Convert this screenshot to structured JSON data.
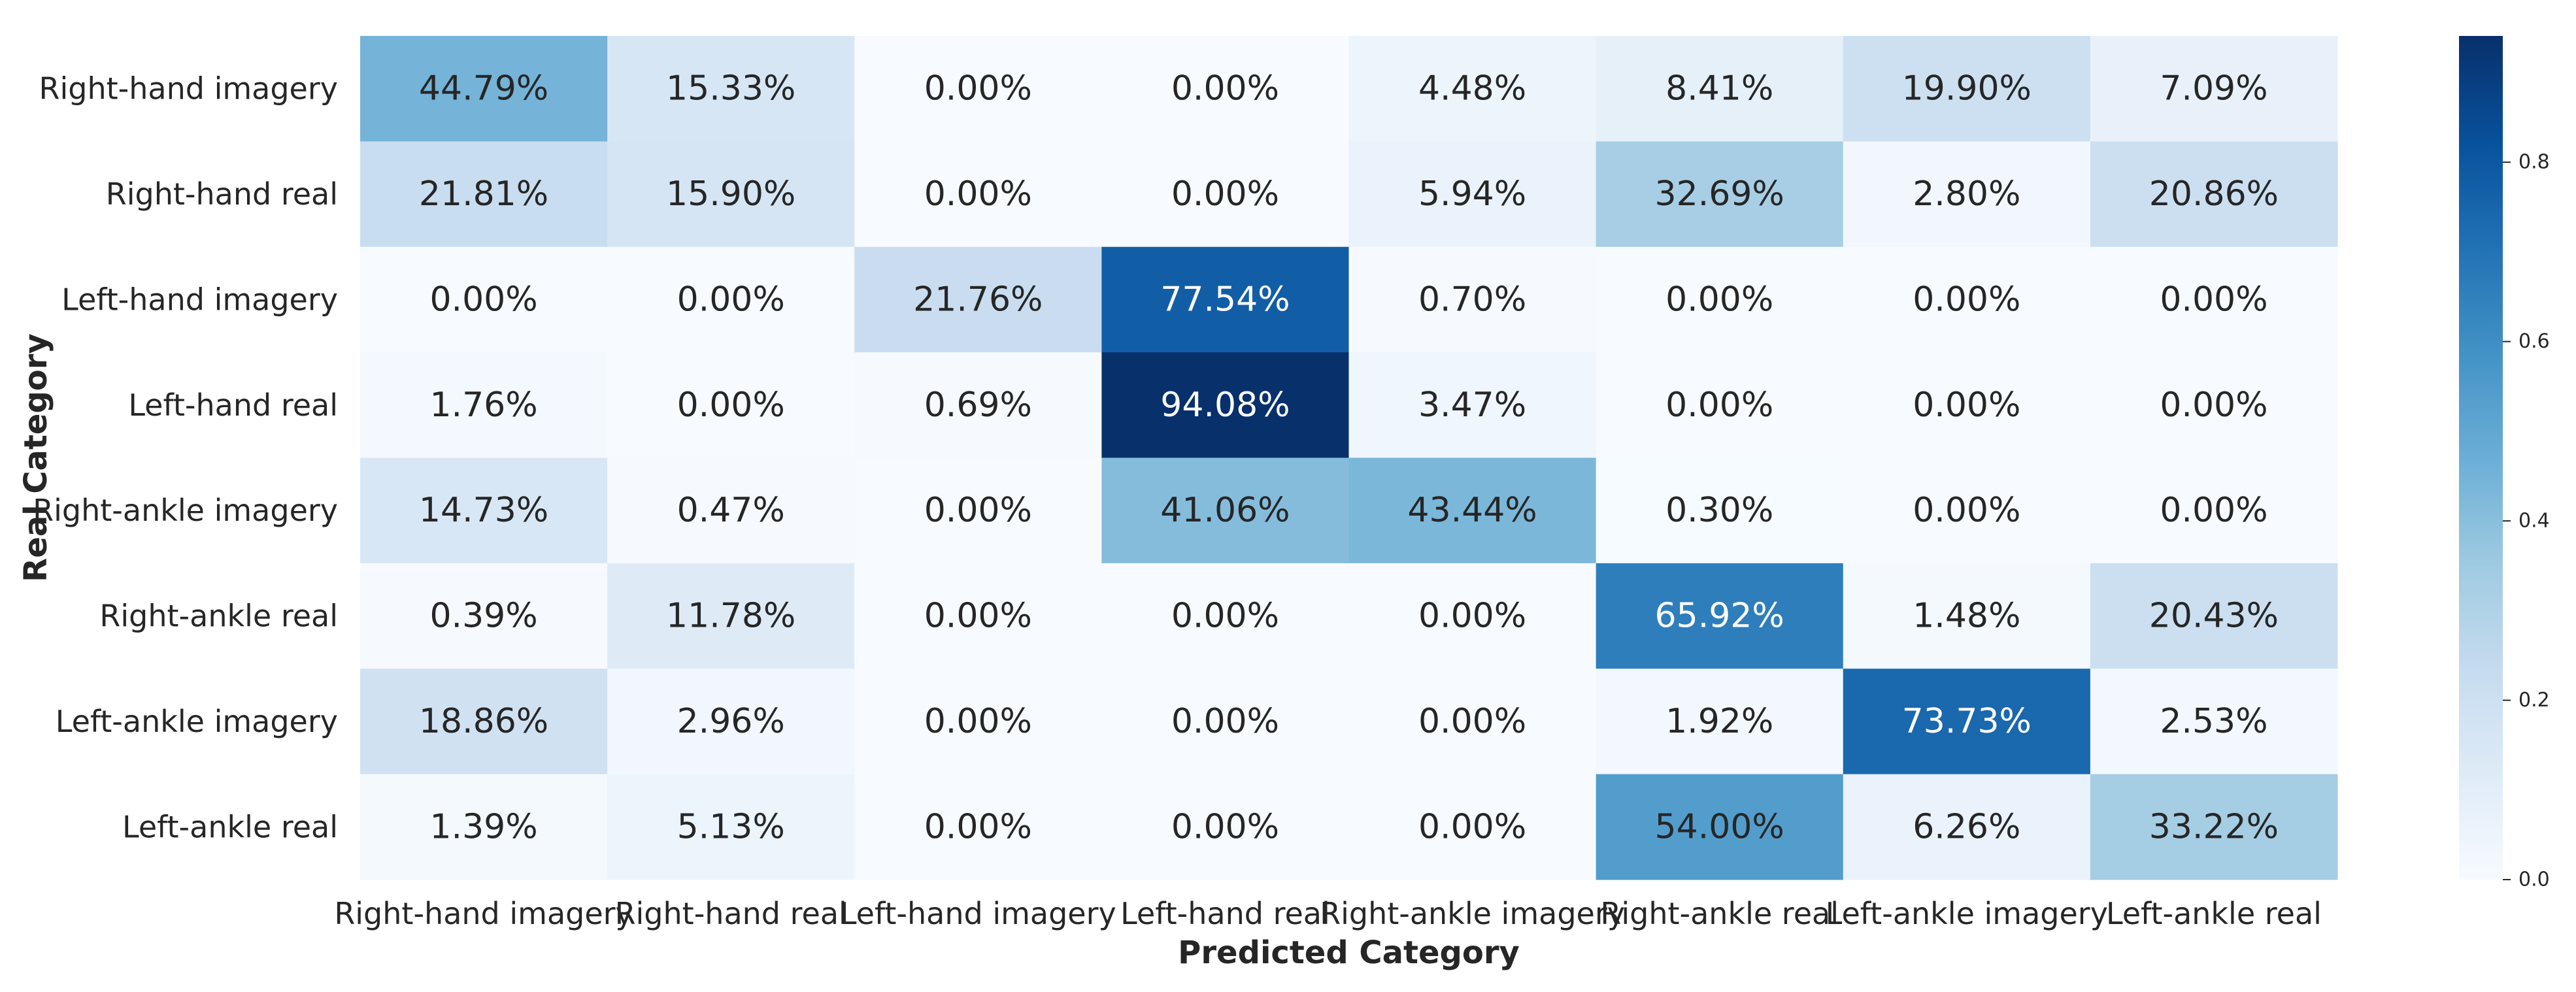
{
  "chart_data": {
    "type": "heatmap",
    "title": "",
    "xlabel": "Predicted Category",
    "ylabel": "Real Category",
    "x_categories": [
      "Right-hand imagery",
      "Right-hand real",
      "Left-hand imagery",
      "Left-hand real",
      "Right-ankle imagery",
      "Right-ankle real",
      "Left-ankle imagery",
      "Left-ankle real"
    ],
    "y_categories": [
      "Right-hand imagery",
      "Right-hand real",
      "Left-hand imagery",
      "Left-hand real",
      "Right-ankle imagery",
      "Right-ankle real",
      "Left-ankle imagery",
      "Left-ankle real"
    ],
    "values": [
      [
        0.4479,
        0.1533,
        0.0,
        0.0,
        0.0448,
        0.0841,
        0.199,
        0.0709
      ],
      [
        0.2181,
        0.159,
        0.0,
        0.0,
        0.0594,
        0.3269,
        0.028,
        0.2086
      ],
      [
        0.0,
        0.0,
        0.2176,
        0.7754,
        0.007,
        0.0,
        0.0,
        0.0
      ],
      [
        0.0176,
        0.0,
        0.0069,
        0.9408,
        0.0347,
        0.0,
        0.0,
        0.0
      ],
      [
        0.1473,
        0.0047,
        0.0,
        0.4106,
        0.4344,
        0.003,
        0.0,
        0.0
      ],
      [
        0.0039,
        0.1178,
        0.0,
        0.0,
        0.0,
        0.6592,
        0.0148,
        0.2043
      ],
      [
        0.1886,
        0.0296,
        0.0,
        0.0,
        0.0,
        0.0192,
        0.7373,
        0.0253
      ],
      [
        0.0139,
        0.0513,
        0.0,
        0.0,
        0.0,
        0.54,
        0.0626,
        0.3322
      ]
    ],
    "cell_labels": [
      [
        "44.79%",
        "15.33%",
        "0.00%",
        "0.00%",
        "4.48%",
        "8.41%",
        "19.90%",
        "7.09%"
      ],
      [
        "21.81%",
        "15.90%",
        "0.00%",
        "0.00%",
        "5.94%",
        "32.69%",
        "2.80%",
        "20.86%"
      ],
      [
        "0.00%",
        "0.00%",
        "21.76%",
        "77.54%",
        "0.70%",
        "0.00%",
        "0.00%",
        "0.00%"
      ],
      [
        "1.76%",
        "0.00%",
        "0.69%",
        "94.08%",
        "3.47%",
        "0.00%",
        "0.00%",
        "0.00%"
      ],
      [
        "14.73%",
        "0.47%",
        "0.00%",
        "41.06%",
        "43.44%",
        "0.30%",
        "0.00%",
        "0.00%"
      ],
      [
        "0.39%",
        "11.78%",
        "0.00%",
        "0.00%",
        "0.00%",
        "65.92%",
        "1.48%",
        "20.43%"
      ],
      [
        "18.86%",
        "2.96%",
        "0.00%",
        "0.00%",
        "0.00%",
        "1.92%",
        "73.73%",
        "2.53%"
      ],
      [
        "1.39%",
        "5.13%",
        "0.00%",
        "0.00%",
        "0.00%",
        "54.00%",
        "6.26%",
        "33.22%"
      ]
    ],
    "colormap": "Blues",
    "color_range": [
      0.0,
      0.9408
    ],
    "colorbar": {
      "ticks": [
        0.0,
        0.2,
        0.4,
        0.6,
        0.8
      ],
      "tick_labels": [
        "0.0",
        "0.2",
        "0.4",
        "0.6",
        "0.8"
      ],
      "placement": "right"
    },
    "grid": false
  }
}
